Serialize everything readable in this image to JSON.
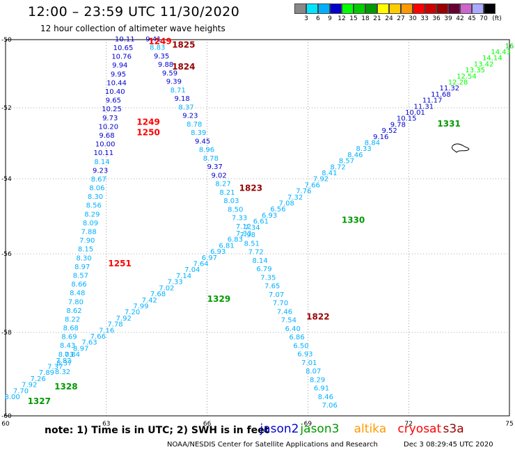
{
  "header": {
    "title": "12:00 – 23:59 UTC 11/30/2020",
    "subtitle": "12 hour collection of altimeter wave heights"
  },
  "color_scale": {
    "colors": [
      "#888888",
      "#00e5ff",
      "#00b0ff",
      "#0000cc",
      "#00ff00",
      "#00cc00",
      "#009900",
      "#ffff00",
      "#ffcc00",
      "#ff9900",
      "#ff0000",
      "#cc0000",
      "#990000",
      "#660033",
      "#cc66cc",
      "#aaaaff",
      "#000000"
    ],
    "labels": [
      "3",
      "6",
      "9",
      "12",
      "15",
      "18",
      "21",
      "24",
      "27",
      "30",
      "33",
      "36",
      "39",
      "42",
      "45",
      "70",
      "(ft)"
    ]
  },
  "axes": {
    "lat_ticks": [
      "-50",
      "-52",
      "-54",
      "-56",
      "-58",
      "-60"
    ],
    "lat_values": [
      -50,
      -52,
      -54,
      -56,
      -58,
      -60
    ],
    "lon_ticks": [
      "60",
      "63",
      "66",
      "69",
      "72",
      "75"
    ],
    "lon_values": [
      60,
      63,
      66,
      69,
      72,
      75
    ]
  },
  "track_labels": [
    {
      "text": "1249",
      "sat": "cryosat",
      "lon": 64.6,
      "lat": -50.05
    },
    {
      "text": "1825",
      "sat": "s3a",
      "lon": 65.3,
      "lat": -50.15
    },
    {
      "text": "1824",
      "sat": "s3a",
      "lon": 65.3,
      "lat": -50.8
    },
    {
      "text": "1249",
      "sat": "cryosat",
      "lon": 64.25,
      "lat": -52.4
    },
    {
      "text": "1250",
      "sat": "cryosat",
      "lon": 64.25,
      "lat": -52.7
    },
    {
      "text": "1251",
      "sat": "cryosat",
      "lon": 63.4,
      "lat": -56.25
    },
    {
      "text": "1823",
      "sat": "s3a",
      "lon": 67.3,
      "lat": -54.25
    },
    {
      "text": "1822",
      "sat": "s3a",
      "lon": 69.3,
      "lat": -57.6
    },
    {
      "text": "1329",
      "sat": "jason3",
      "lon": 66.35,
      "lat": -57.15
    },
    {
      "text": "1330",
      "sat": "jason3",
      "lon": 70.35,
      "lat": -55.1
    },
    {
      "text": "1331",
      "sat": "jason3",
      "lon": 73.2,
      "lat": -52.45
    },
    {
      "text": "1328",
      "sat": "jason3",
      "lon": 61.8,
      "lat": -59.3
    },
    {
      "text": "1327",
      "sat": "jason3",
      "lon": 61.0,
      "lat": -59.65
    }
  ],
  "track_a": {
    "values": [
      "8.00",
      "7.70",
      "7.92",
      "7.26",
      "7.89",
      "7.37",
      "7.82",
      "7.84",
      "8.97",
      "7.63",
      "7.66",
      "7.16",
      "7.78",
      "7.92",
      "7.20",
      "7.99",
      "7.42",
      "7.68",
      "7.02",
      "7.33",
      "7.14",
      "7.04",
      "7.64",
      "6.97",
      "6.93",
      "6.81",
      "6.83",
      "7.33",
      "7.34",
      "6.61",
      "6.93",
      "6.56",
      "7.08",
      "7.32",
      "7.76",
      "7.66",
      "7.92",
      "8.41",
      "8.72",
      "8.57",
      "8.46",
      "8.33",
      "8.84",
      "9.16",
      "9.52",
      "9.78",
      "10.15",
      "10.01",
      "11.31",
      "11.17",
      "11.68",
      "11.32",
      "12.28",
      "12.54",
      "13.35",
      "13.42",
      "14.14",
      "14.43",
      "16"
    ],
    "start": [
      60.2,
      -59.6
    ],
    "end": [
      75.0,
      -50.25
    ]
  },
  "track_b": {
    "values": [
      "10.11",
      "10.65",
      "10.76",
      "9.94",
      "9.95",
      "10.44",
      "10.40",
      "9.65",
      "10.25",
      "9.73",
      "10.20",
      "9.68",
      "10.00",
      "10.11",
      "8.14",
      "9.23",
      "8.67",
      "8.06",
      "8.30",
      "8.56",
      "8.29",
      "8.09",
      "7.88",
      "7.90",
      "8.15",
      "8.30",
      "8.97",
      "8.57",
      "8.66",
      "8.48",
      "7.80",
      "8.62",
      "8.22",
      "8.68",
      "8.69",
      "8.43",
      "8.03",
      "8.37",
      "8.32"
    ],
    "start": [
      63.55,
      -50.05
    ],
    "end": [
      61.7,
      -59.0
    ]
  },
  "track_c": {
    "values": [
      "9.41",
      "8.83",
      "9.35",
      "9.88",
      "9.59",
      "9.39",
      "8.71",
      "9.18",
      "8.37",
      "9.23",
      "8.78",
      "8.39",
      "9.45",
      "8.96",
      "8.78",
      "9.37",
      "9.02",
      "8.27",
      "8.21",
      "8.03",
      "8.50",
      "7.33",
      "7.12",
      "7.98",
      "8.51",
      "7.72",
      "8.14",
      "6.79",
      "7.35",
      "7.65",
      "7.07",
      "7.70",
      "7.46",
      "7.54",
      "6.40",
      "6.86",
      "6.50",
      "6.93",
      "7.01",
      "8.07",
      "8.29",
      "6.91",
      "8.46",
      "7.06"
    ],
    "start": [
      64.4,
      -50.05
    ],
    "end": [
      69.65,
      -59.8
    ]
  },
  "note": "note:  1) Time is in UTC;  2) SWH is in feet",
  "satellites": [
    {
      "name": "jason2",
      "color": "#0000cc",
      "lon": 68.65
    },
    {
      "name": "jason3",
      "color": "#009900",
      "lon": 69.85
    },
    {
      "name": "altika",
      "color": "#ff9900",
      "lon": 71.45
    },
    {
      "name": "cryosat",
      "color": "#ff0000",
      "lon": 72.75
    },
    {
      "name": "s3a",
      "color": "#990000",
      "lon": 74.1
    }
  ],
  "footer": {
    "credit": "NOAA/NESDIS Center for Satellite Applications and Research",
    "timestamp": "Dec  3 08:29:45 UTC 2020"
  },
  "sat_colors": {
    "cryosat": "#ff0000",
    "s3a": "#990000",
    "jason3": "#009900",
    "jason2": "#0000cc",
    "altika": "#ff9900"
  }
}
